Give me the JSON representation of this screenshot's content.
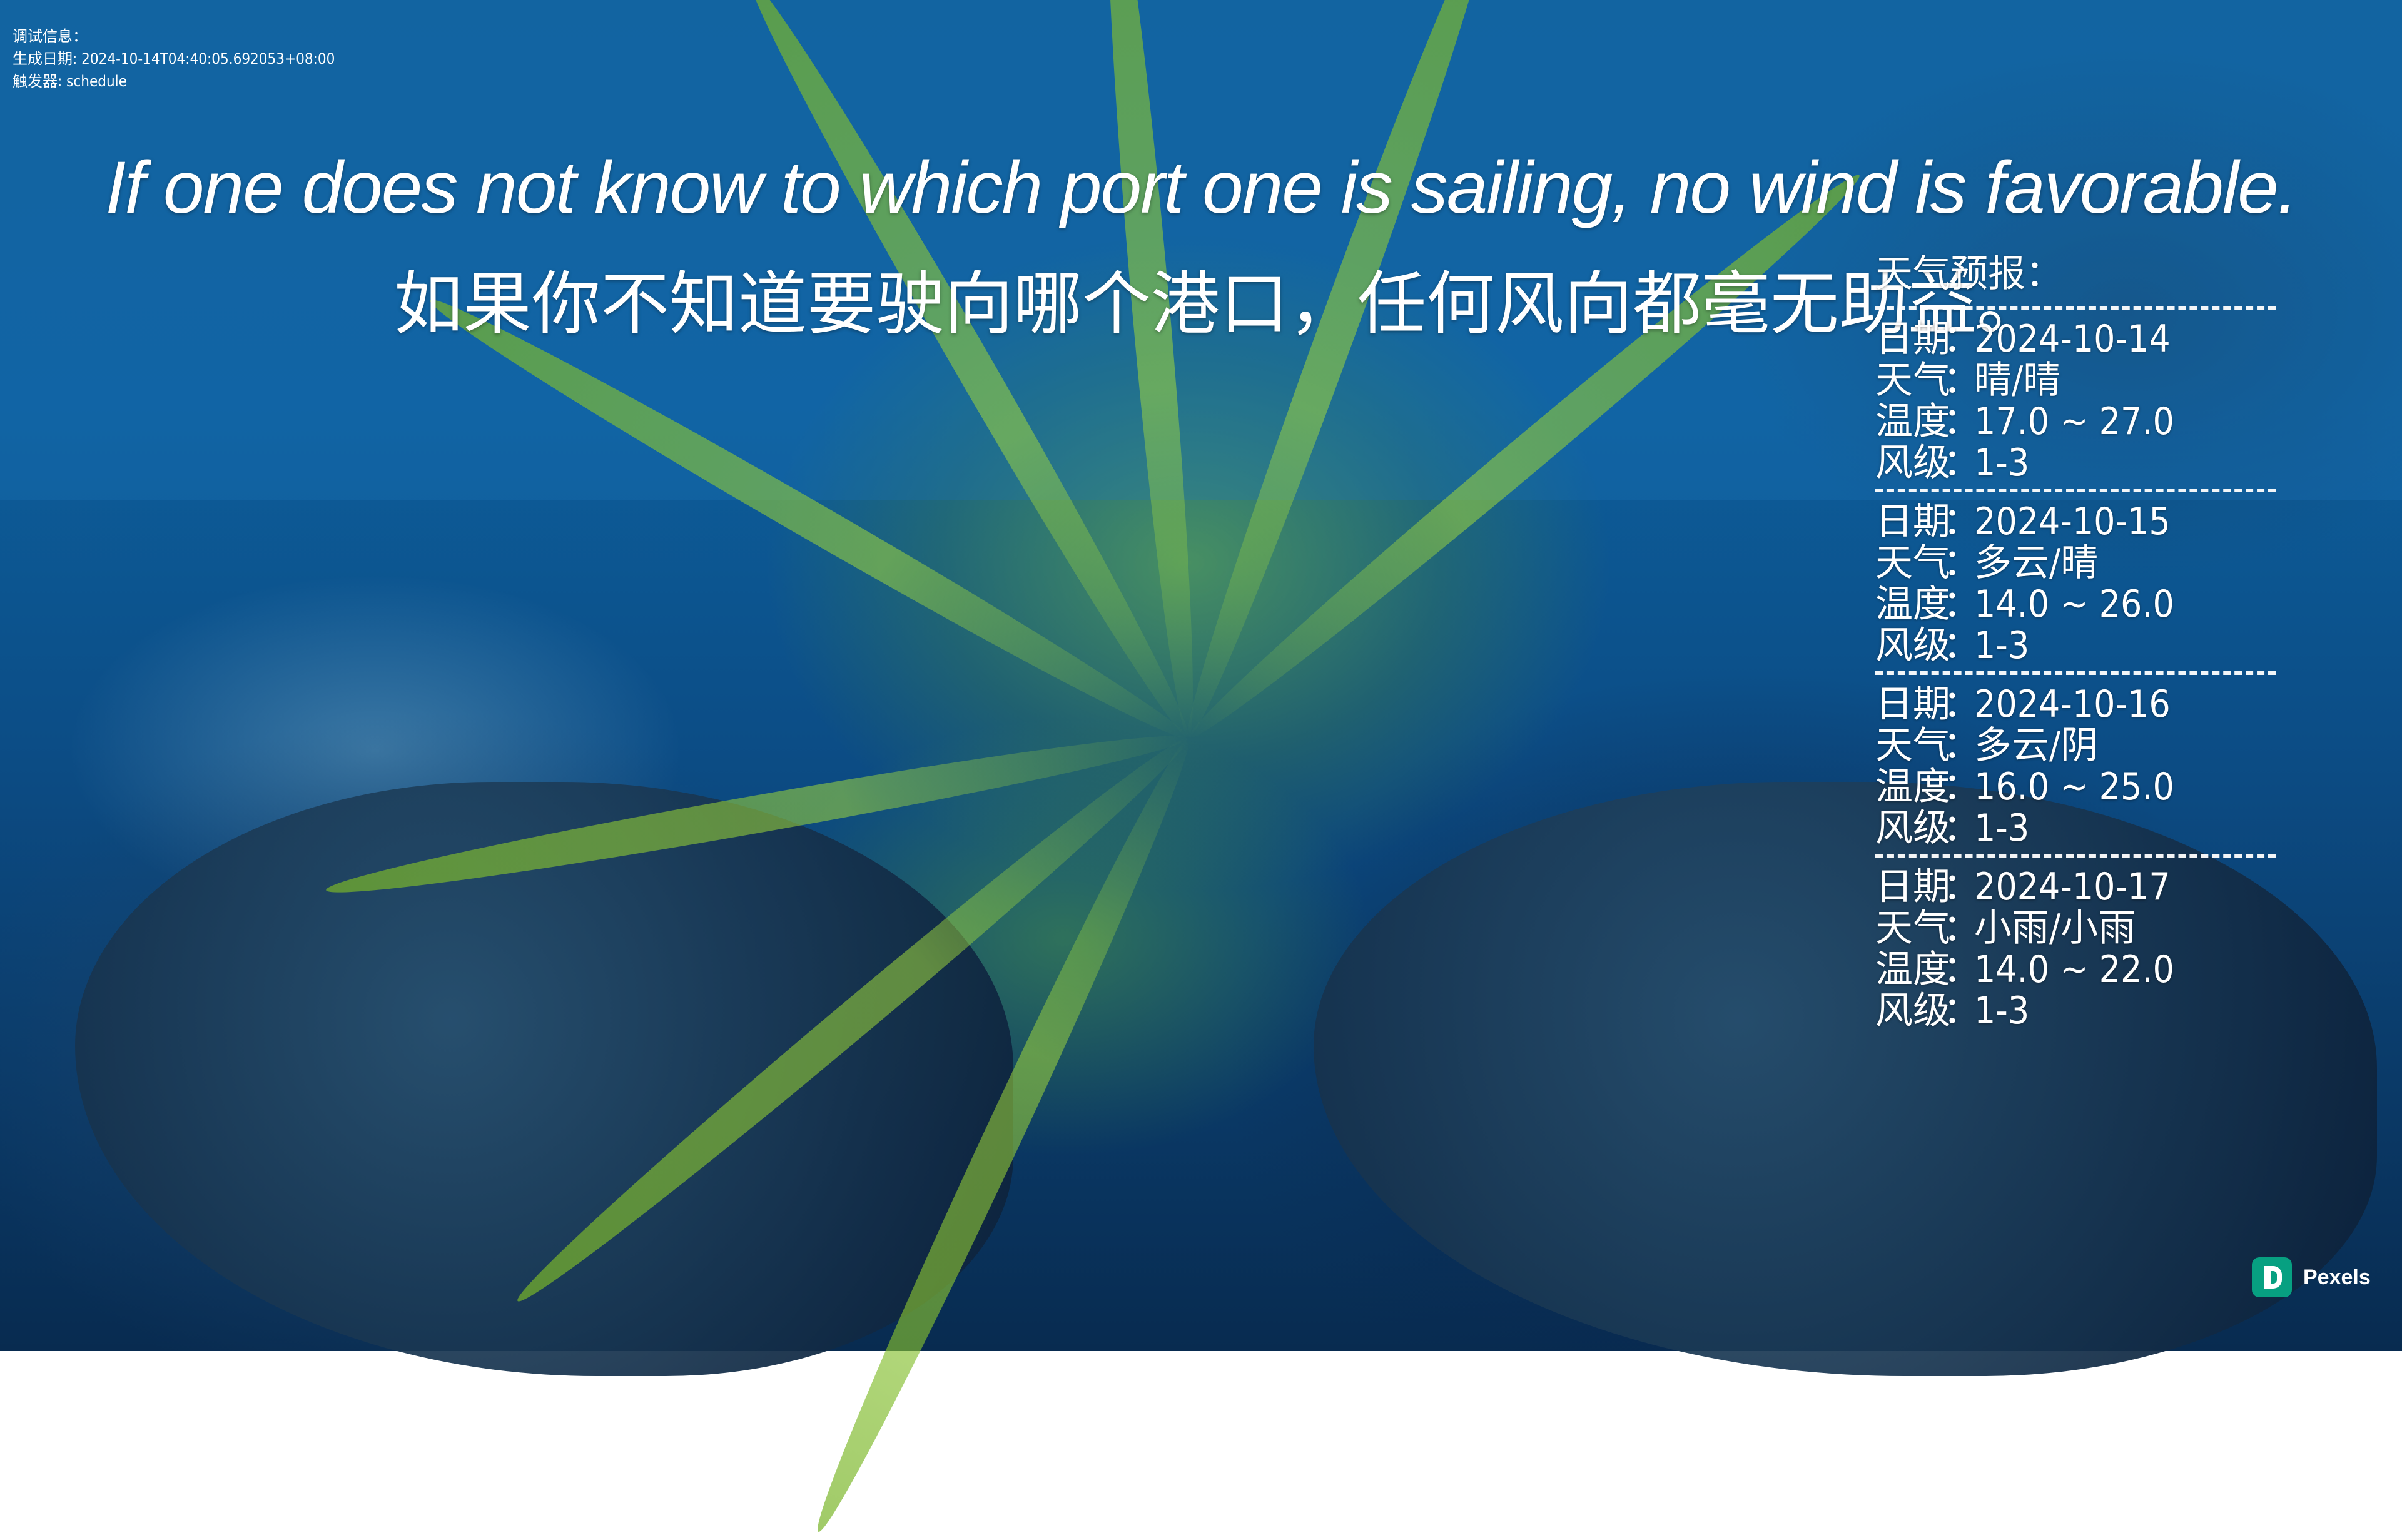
{
  "debug": {
    "title": "调试信息：",
    "generated": "生成日期: 2024-10-14T04:40:05.692053+08:00",
    "trigger": "触发器: schedule"
  },
  "quote": {
    "en": "If one does not know to which port one is sailing, no wind is favorable.",
    "zh": "如果你不知道要驶向哪个港口，任何风向都毫无助益。"
  },
  "weather": {
    "title": "天气预报：",
    "labels": {
      "date": "日期",
      "weather": "天气",
      "temp": "温度",
      "wind": "风级",
      "sep": "："
    },
    "days": [
      {
        "date": "2024-10-14",
        "weather": "晴/晴",
        "temp": "17.0 ~ 27.0",
        "wind": "1-3"
      },
      {
        "date": "2024-10-15",
        "weather": "多云/晴",
        "temp": "14.0 ~ 26.0",
        "wind": "1-3"
      },
      {
        "date": "2024-10-16",
        "weather": "多云/阴",
        "temp": "16.0 ~ 25.0",
        "wind": "1-3"
      },
      {
        "date": "2024-10-17",
        "weather": "小雨/小雨",
        "temp": "14.0 ~ 22.0",
        "wind": "1-3"
      }
    ]
  },
  "credit": {
    "label": "Pexels",
    "icon": "pexels-logo-icon",
    "color": "#07a081"
  }
}
